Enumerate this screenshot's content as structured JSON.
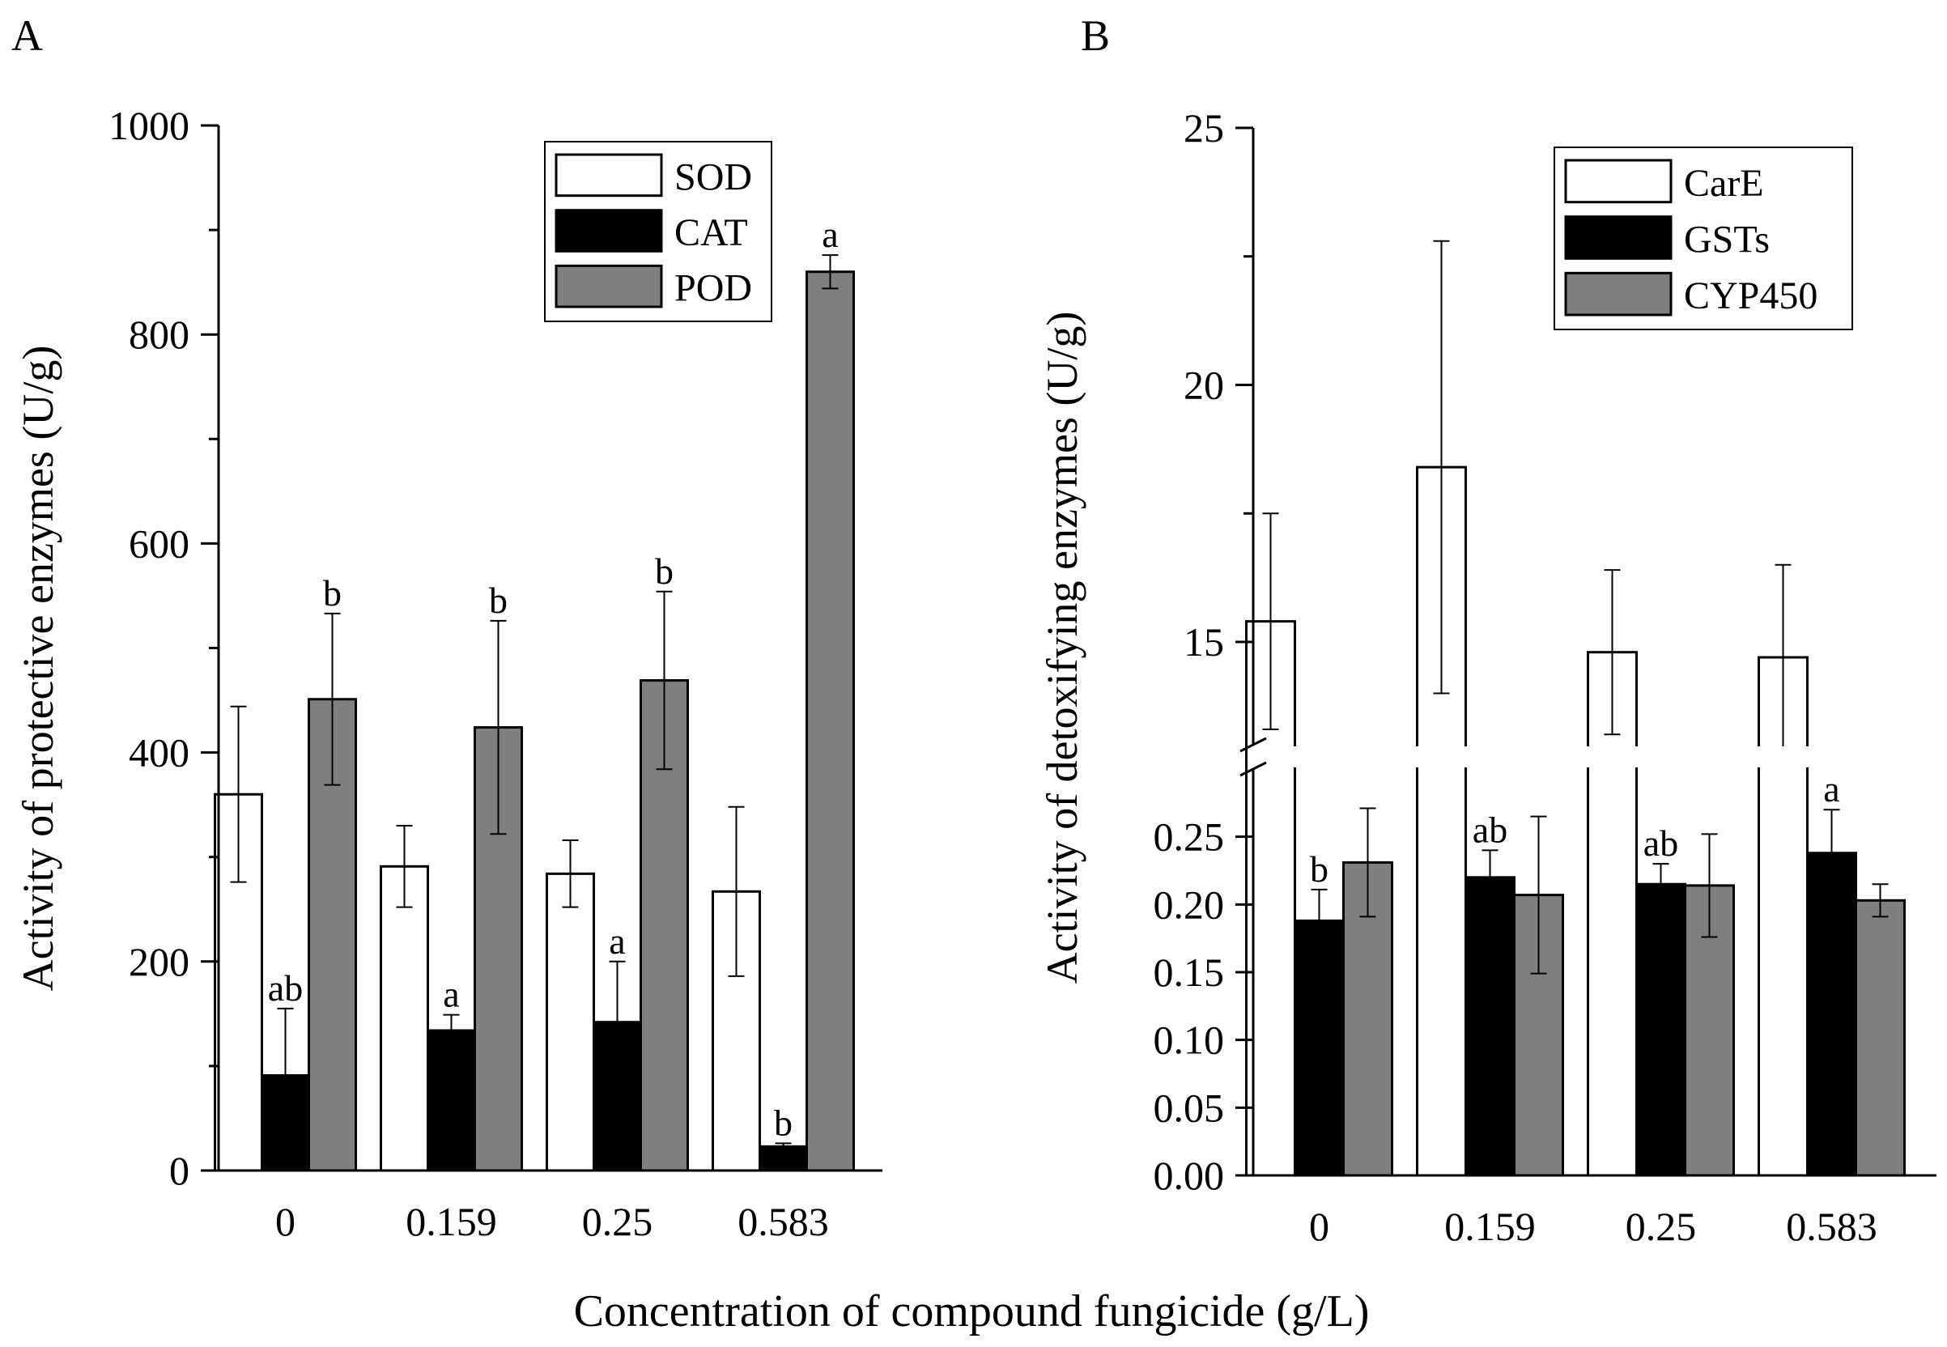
{
  "shared_xlabel": "Concentration of compound fungicide (g/L)",
  "chart_data": [
    {
      "panel": "A",
      "type": "bar",
      "ylabel": "Activity of protective enzymes (U/g)",
      "xlabel": "Concentration of compound fungicide (g/L)",
      "categories": [
        "0",
        "0.159",
        "0.25",
        "0.583"
      ],
      "ylim": [
        0,
        1000
      ],
      "yticks": [
        "0",
        "200",
        "400",
        "600",
        "800",
        "1000"
      ],
      "legend_position": "top-right",
      "series": [
        {
          "name": "SOD",
          "color": "#ffffff",
          "values": [
            360,
            291,
            284,
            267
          ],
          "errors": [
            84,
            39,
            32,
            81
          ],
          "labels": [
            "",
            "",
            "",
            ""
          ]
        },
        {
          "name": "CAT",
          "color": "#000000",
          "values": [
            91,
            134,
            142,
            23
          ],
          "errors": [
            64,
            15,
            58,
            3
          ],
          "labels": [
            "ab",
            "a",
            "a",
            "b"
          ]
        },
        {
          "name": "POD",
          "color": "#7f7f7f",
          "values": [
            451,
            424,
            469,
            860
          ],
          "errors": [
            82,
            102,
            85,
            16
          ],
          "labels": [
            "b",
            "b",
            "b",
            "a"
          ]
        }
      ]
    },
    {
      "panel": "B",
      "type": "bar",
      "ylabel": "Activity of detoxifying enzymes (U/g)",
      "xlabel": "Concentration of compound fungicide (g/L)",
      "categories": [
        "0",
        "0.159",
        "0.25",
        "0.583"
      ],
      "axis_break": true,
      "ylim_upper": [
        13,
        25
      ],
      "yticks_upper": [
        "15",
        "20",
        "25"
      ],
      "ylim_lower": [
        0,
        0.3
      ],
      "yticks_lower": [
        "0.00",
        "0.05",
        "0.10",
        "0.15",
        "0.20",
        "0.25"
      ],
      "legend_position": "top-right",
      "series": [
        {
          "name": "CarE",
          "color": "#ffffff",
          "values": [
            15.4,
            18.4,
            14.8,
            14.7
          ],
          "errors": [
            2.1,
            4.4,
            1.6,
            1.8
          ],
          "labels": [
            "",
            "",
            "",
            ""
          ]
        },
        {
          "name": "GSTs",
          "color": "#000000",
          "values": [
            0.188,
            0.22,
            0.215,
            0.238
          ],
          "errors": [
            0.023,
            0.02,
            0.015,
            0.032
          ],
          "labels": [
            "b",
            "ab",
            "ab",
            "a"
          ]
        },
        {
          "name": "CYP450",
          "color": "#7f7f7f",
          "values": [
            0.231,
            0.207,
            0.214,
            0.203
          ],
          "errors": [
            0.04,
            0.058,
            0.038,
            0.012
          ],
          "labels": [
            "",
            "",
            "",
            ""
          ]
        }
      ]
    }
  ]
}
